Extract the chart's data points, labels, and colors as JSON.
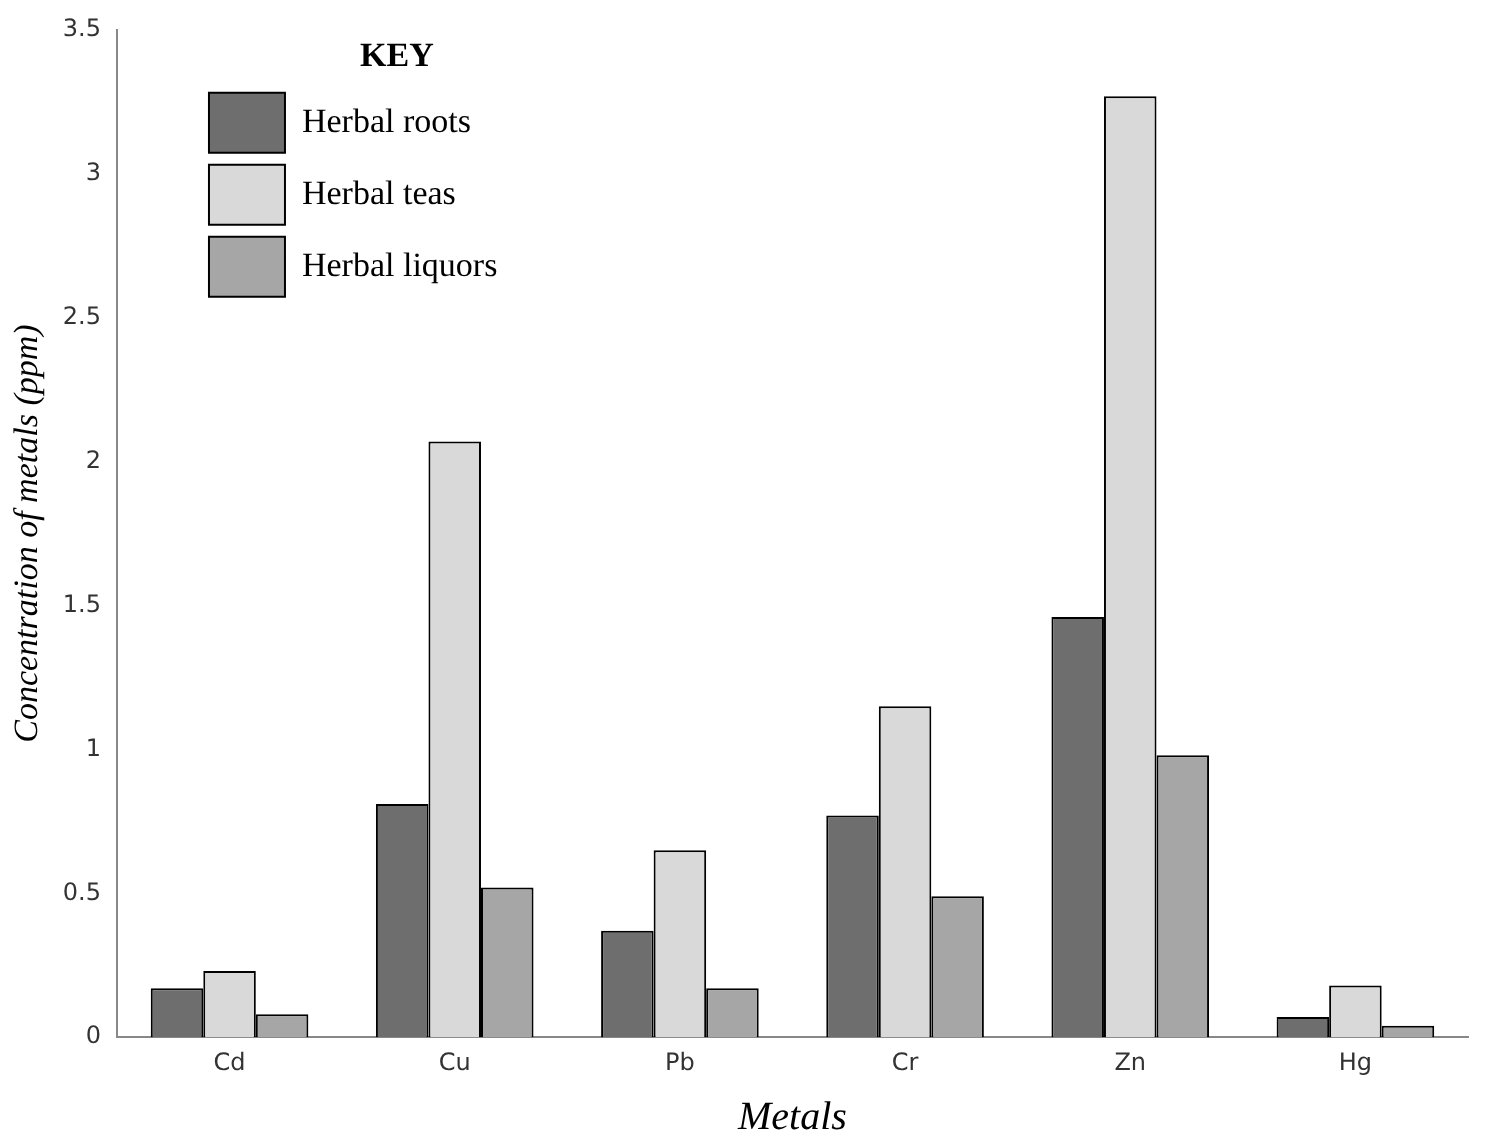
{
  "chart_data": {
    "type": "bar",
    "xlabel": "Metals",
    "ylabel": "Concentration of metals (ppm)",
    "legend_title": "KEY",
    "legend": "top left",
    "grid": false,
    "categories": [
      "Cd",
      "Cu",
      "Pb",
      "Cr",
      "Zn",
      "Hg"
    ],
    "ylim": [
      0,
      3.5
    ],
    "yticks": [
      0,
      {
        "value": 0.5,
        "label": "0.5"
      },
      1,
      {
        "value": 1.5,
        "label": "1.5"
      },
      2,
      {
        "value": 2.5,
        "label": "2.5"
      },
      3,
      {
        "value": 3.5,
        "label": "3.5"
      }
    ],
    "series": [
      {
        "name": "Herbal roots",
        "color": "#6e6e6e",
        "values": [
          0.17,
          0.81,
          0.37,
          0.77,
          1.46,
          0.07
        ]
      },
      {
        "name": "Herbal teas",
        "color": "#d9d9d9",
        "values": [
          0.23,
          2.07,
          0.65,
          1.15,
          3.27,
          0.18
        ]
      },
      {
        "name": "Herbal liquors",
        "color": "#a6a6a6",
        "values": [
          0.08,
          0.52,
          0.17,
          0.49,
          0.98,
          0.04
        ]
      }
    ]
  }
}
